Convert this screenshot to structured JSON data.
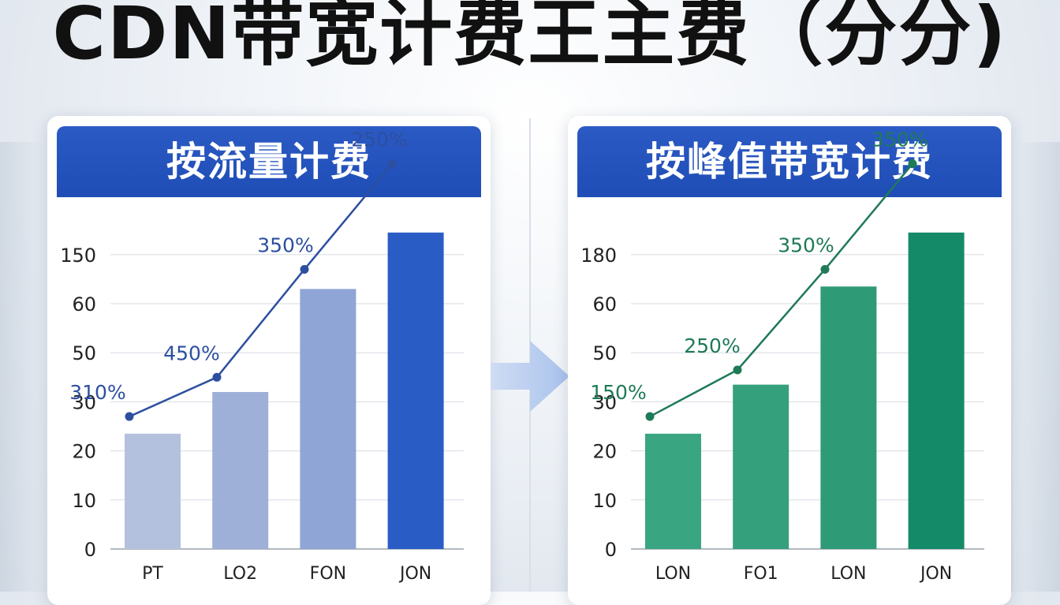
{
  "title": "CDN带宽计费王主费（分分)",
  "chart_data": [
    {
      "type": "bar",
      "title": "按流量计费",
      "categories": [
        "PT",
        "LO2",
        "FON",
        "JON"
      ],
      "values": [
        23.5,
        32,
        53,
        64.5
      ],
      "yticks": [
        "0",
        "10",
        "20",
        "30",
        "50",
        "60",
        "150"
      ],
      "line_values": [
        27,
        35,
        57,
        78.5
      ],
      "data_labels": [
        "310%",
        "450%",
        "350%",
        "250%"
      ],
      "bar_colors": [
        "#b4c1de",
        "#9eb0d8",
        "#8fa5d6",
        "#2a5cc6"
      ],
      "line_color": "#2d4fa0",
      "grid": true
    },
    {
      "type": "bar",
      "title": "按峰值带宽计费",
      "categories": [
        "LON",
        "FO1",
        "LON",
        "JON"
      ],
      "values": [
        23.5,
        33.5,
        53.5,
        64.5
      ],
      "yticks": [
        "0",
        "10",
        "20",
        "30",
        "50",
        "60",
        "180"
      ],
      "line_values": [
        27,
        36.5,
        57,
        78.5
      ],
      "data_labels": [
        "150%",
        "250%",
        "350%",
        "350%"
      ],
      "bar_colors": [
        "#3aa581",
        "#35a07c",
        "#2f9a76",
        "#148a68"
      ],
      "line_color": "#1f7a57",
      "grid": true
    }
  ]
}
